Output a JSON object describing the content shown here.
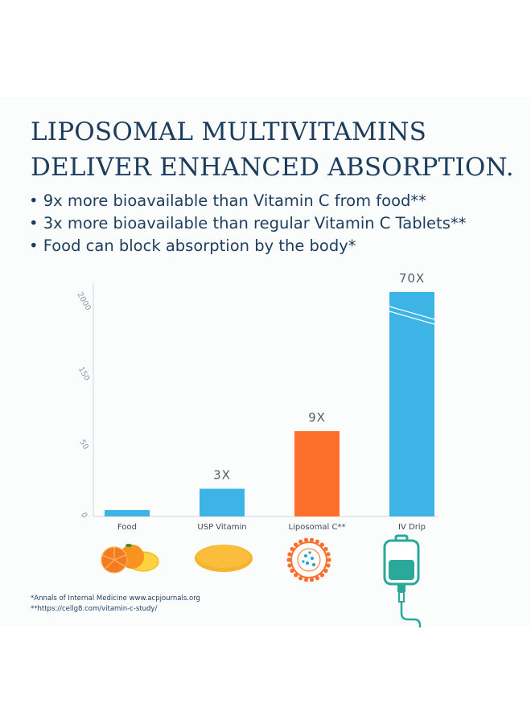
{
  "headline": {
    "line1": "LIPOSOMAL MULTIVITAMINS",
    "line2": "DELIVER ENHANCED ABSORPTION."
  },
  "bullets": [
    "9x more bioavailable than Vitamin C from food**",
    "3x more bioavailable than regular Vitamin C Tablets**",
    "Food can block absorption by the body*"
  ],
  "chart_data": {
    "type": "bar",
    "categories": [
      "Food",
      "USP Vitamin",
      "Liposomal C**",
      "IV Drip"
    ],
    "values": [
      6,
      26,
      80,
      210
    ],
    "data_labels": [
      "",
      "3X",
      "9X",
      "70X"
    ],
    "y_ticks": [
      "0",
      "50",
      "150",
      "2000"
    ],
    "colors": [
      "#3cb4e6",
      "#3cb4e6",
      "#ff6f2c",
      "#3cb4e6"
    ],
    "axis_break_on": "IV Drip",
    "grid": false
  },
  "icons": [
    "orange-lemon-icon",
    "tablet-icon",
    "liposome-icon",
    "iv-bag-icon"
  ],
  "colors": {
    "navy": "#1c3d5e",
    "blue_bar": "#3cb4e6",
    "orange_bar": "#ff6f2c",
    "iv_teal": "#2aa99a",
    "tablet_yellow": "#f7b32b"
  },
  "footnotes": {
    "line1": "*Annals of Internal Medicine www.acpjournals.org",
    "line2": "**https://cellg8.com/vitamin-c-study/"
  }
}
